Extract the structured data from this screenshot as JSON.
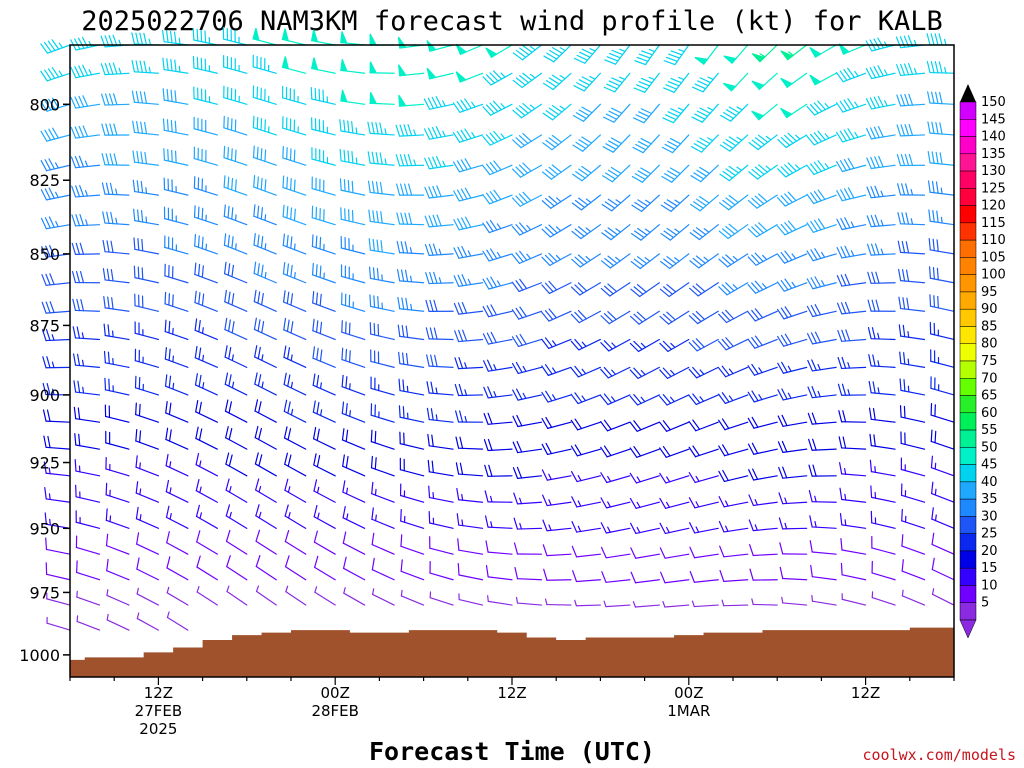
{
  "chart_data": {
    "type": "wind_barb_time_height",
    "title": "2025022706 NAM3KM forecast wind profile (kt) for KALB",
    "xlabel": "Forecast Time (UTC)",
    "ylabel": "",
    "y_ticks": [
      800,
      825,
      850,
      875,
      900,
      925,
      950,
      975,
      1000
    ],
    "y_range_hpa": [
      781,
      1009
    ],
    "x_range_hours": [
      6,
      66
    ],
    "x_ticks": [
      {
        "hour": 12,
        "lines": [
          "12Z",
          "27FEB",
          "2025"
        ]
      },
      {
        "hour": 24,
        "lines": [
          "00Z",
          "28FEB"
        ]
      },
      {
        "hour": 36,
        "lines": [
          "12Z"
        ]
      },
      {
        "hour": 48,
        "lines": [
          "00Z",
          "1MAR"
        ]
      },
      {
        "hour": 60,
        "lines": [
          "12Z"
        ]
      }
    ],
    "speed_units": "kt",
    "colorbar_levels": [
      5,
      10,
      15,
      20,
      25,
      30,
      35,
      40,
      45,
      50,
      55,
      60,
      65,
      70,
      75,
      80,
      85,
      90,
      95,
      100,
      105,
      110,
      115,
      120,
      125,
      130,
      135,
      140,
      145,
      150
    ],
    "colorbar_colors": [
      "#8a2be2",
      "#7000ff",
      "#3400ff",
      "#0000e6",
      "#0a28f0",
      "#1e55f5",
      "#1e88ff",
      "#1ea8ff",
      "#00d2f0",
      "#00f0c8",
      "#00f096",
      "#00f05a",
      "#28f028",
      "#64ff00",
      "#b4ff00",
      "#f0ff00",
      "#ffe600",
      "#ffc800",
      "#ffaa00",
      "#ff9600",
      "#ff8200",
      "#ff6e00",
      "#ff3200",
      "#ff0000",
      "#ff003c",
      "#ff0064",
      "#ff1493",
      "#ff00c8",
      "#ff00ff",
      "#d200ff"
    ],
    "barb_levels_hpa": [
      781,
      790,
      800,
      810,
      820,
      830,
      840,
      850,
      860,
      870,
      880,
      890,
      900,
      910,
      920,
      930,
      940,
      950,
      960,
      970,
      980,
      990,
      1000
    ],
    "barb_times_hours": [
      6,
      8,
      10,
      12,
      14,
      16,
      18,
      20,
      22,
      24,
      26,
      28,
      30,
      32,
      34,
      36,
      38,
      40,
      42,
      44,
      46,
      48,
      50,
      52,
      54,
      56,
      58,
      60,
      62,
      64,
      66
    ],
    "terrain_surface_hpa": [
      [
        6,
        1002
      ],
      [
        8,
        1001
      ],
      [
        10,
        1001
      ],
      [
        12,
        999
      ],
      [
        14,
        997
      ],
      [
        16,
        994
      ],
      [
        18,
        992
      ],
      [
        20,
        991
      ],
      [
        22,
        990
      ],
      [
        24,
        990
      ],
      [
        26,
        991
      ],
      [
        28,
        991
      ],
      [
        30,
        990
      ],
      [
        32,
        990
      ],
      [
        34,
        990
      ],
      [
        36,
        991
      ],
      [
        38,
        993
      ],
      [
        40,
        994
      ],
      [
        42,
        993
      ],
      [
        44,
        993
      ],
      [
        46,
        993
      ],
      [
        48,
        992
      ],
      [
        50,
        991
      ],
      [
        52,
        991
      ],
      [
        54,
        990
      ],
      [
        56,
        990
      ],
      [
        58,
        990
      ],
      [
        60,
        990
      ],
      [
        62,
        990
      ],
      [
        64,
        989
      ],
      [
        66,
        989
      ]
    ],
    "terrain_color": "#a0522d",
    "credit": "coolwx.com/models"
  }
}
